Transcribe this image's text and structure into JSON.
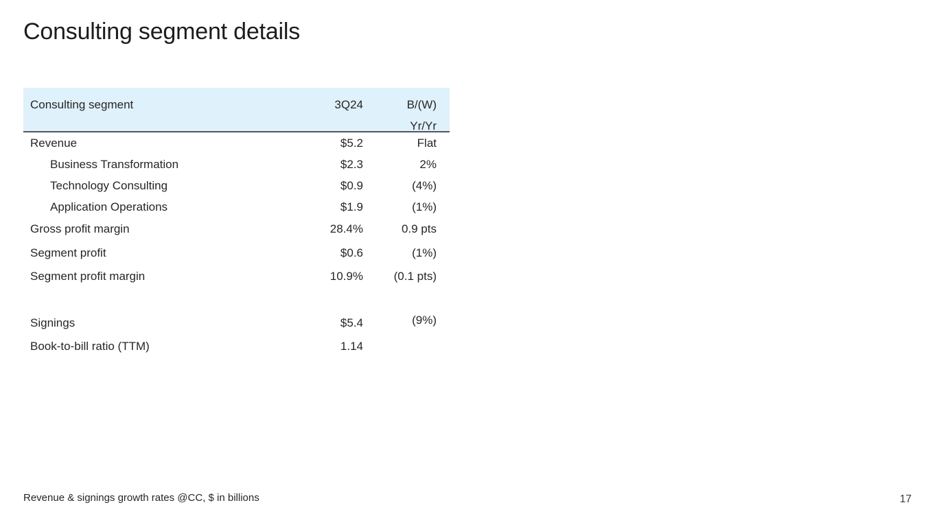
{
  "slide": {
    "title": "Consulting segment details",
    "footnote": "Revenue & signings growth rates @CC, $ in billions",
    "page_number": "17"
  },
  "table": {
    "header": {
      "label": "Consulting segment",
      "period": "3Q24",
      "change_line1": "B/(W)",
      "change_line2": "Yr/Yr"
    },
    "rows": [
      {
        "label": "Revenue",
        "value": "$5.2",
        "change": "Flat",
        "indent": false
      },
      {
        "label": "Business Transformation",
        "value": "$2.3",
        "change": "2%",
        "indent": true
      },
      {
        "label": "Technology Consulting",
        "value": "$0.9",
        "change": "(4%)",
        "indent": true
      },
      {
        "label": "Application Operations",
        "value": "$1.9",
        "change": "(1%)",
        "indent": true
      },
      {
        "label": "Gross profit margin",
        "value": "28.4%",
        "change": "0.9 pts",
        "indent": false
      },
      {
        "label": "Segment profit",
        "value": "$0.6",
        "change": "(1%)",
        "indent": false
      },
      {
        "label": "Segment profit margin",
        "value": "10.9%",
        "change": "(0.1 pts)",
        "indent": false
      },
      {
        "label": "Signings",
        "value": "$5.4",
        "change": "(9%)",
        "indent": false
      },
      {
        "label": "Book-to-bill ratio (TTM)",
        "value": "1.14",
        "change": "",
        "indent": false
      }
    ],
    "colors": {
      "header_bg": "#dff1fb",
      "header_rule": "#54565b",
      "text": "#262626"
    }
  }
}
